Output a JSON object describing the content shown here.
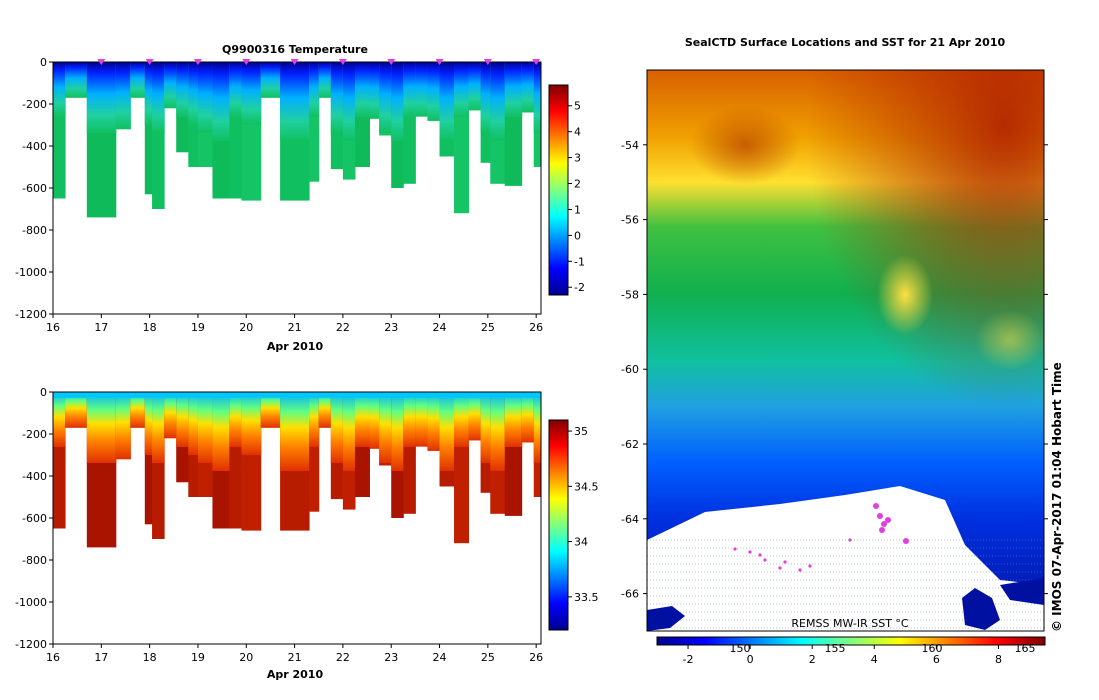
{
  "chart_data": [
    {
      "type": "heatmap",
      "title": "Q9900316  Temperature",
      "xlabel": "Apr 2010",
      "ylabel": "",
      "xlim": [
        16,
        26.1
      ],
      "ylim": [
        -1200,
        0
      ],
      "xticks": [
        "16",
        "17",
        "18",
        "19",
        "20",
        "21",
        "22",
        "23",
        "24",
        "25",
        "26"
      ],
      "yticks": [
        "0",
        "-200",
        "-400",
        "-600",
        "-800",
        "-1000",
        "-1200"
      ],
      "profile_markers_x": [
        17,
        18,
        19,
        20,
        21,
        22,
        23,
        24,
        25,
        26
      ],
      "profiles": {
        "time": [
          16.0,
          16.25,
          16.7,
          17.3,
          17.6,
          17.9,
          18.05,
          18.3,
          18.55,
          18.8,
          19.0,
          19.3,
          19.65,
          19.9,
          20.3,
          20.7,
          21.3,
          21.5,
          21.75,
          22.0,
          22.25,
          22.55,
          22.75,
          23.0,
          23.25,
          23.5,
          23.75,
          24.0,
          24.3,
          24.6,
          24.85,
          25.05,
          25.35,
          25.7,
          25.95,
          26.1
        ],
        "max_depth": [
          650,
          170,
          740,
          320,
          170,
          630,
          700,
          220,
          430,
          500,
          500,
          650,
          650,
          660,
          170,
          660,
          570,
          170,
          510,
          560,
          500,
          270,
          350,
          600,
          580,
          260,
          280,
          450,
          720,
          230,
          480,
          580,
          590,
          240,
          500,
          460
        ]
      },
      "colorbar": {
        "label_values": [
          "5",
          "4",
          "3",
          "2",
          "1",
          "0",
          "-1",
          "-2"
        ],
        "range": [
          -2.3,
          5.8
        ]
      }
    },
    {
      "type": "heatmap",
      "title": "",
      "xlabel": "Apr 2010",
      "xlim": [
        16,
        26.1
      ],
      "ylim": [
        -1200,
        0
      ],
      "xticks": [
        "16",
        "17",
        "18",
        "19",
        "20",
        "21",
        "22",
        "23",
        "24",
        "25",
        "26"
      ],
      "yticks": [
        "0",
        "-200",
        "-400",
        "-600",
        "-800",
        "-1000",
        "-1200"
      ],
      "colorbar": {
        "label_values": [
          "35",
          "34.5",
          "34",
          "33.5"
        ],
        "range": [
          33.2,
          35.1
        ]
      }
    },
    {
      "type": "heatmap",
      "title": "SealCTD Surface Locations and SST for 21 Apr 2010",
      "ylim": [
        -67,
        -52
      ],
      "yticks": [
        "-54",
        "-56",
        "-58",
        "-60",
        "-62",
        "-64",
        "-66"
      ],
      "source_label": "REMSS MW-IR SST °C",
      "colorbar": {
        "celsius_labels": [
          "-2",
          "0",
          "2",
          "4",
          "6",
          "8"
        ],
        "x_labels": [
          "150",
          "155",
          "160",
          "165"
        ],
        "range": [
          -3,
          9.5
        ]
      },
      "credit": "© IMOS 07-Apr-2017 01:04 Hobart Time"
    }
  ],
  "colors": {
    "jet": [
      "#00008f",
      "#0000ff",
      "#00ffff",
      "#7fff7f",
      "#ffff00",
      "#ff0000",
      "#800000"
    ],
    "seal_marker": "#e040e0",
    "sst_dark": [
      "#8b3000",
      "#c06000",
      "#ffd000",
      "#20c060",
      "#0090e8",
      "#0010a0"
    ]
  }
}
